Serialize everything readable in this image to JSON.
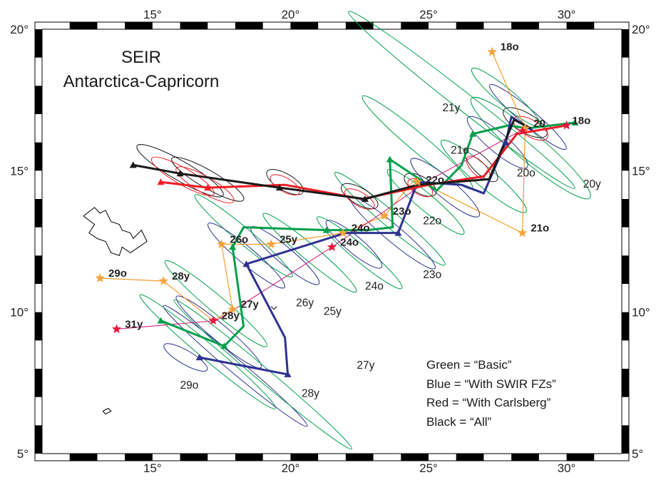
{
  "map": {
    "title_lines": [
      "SEIR",
      "Antarctica-Capricorn"
    ],
    "x_ticks": [
      {
        "value": 15,
        "label": "15°"
      },
      {
        "value": 20,
        "label": "20°"
      },
      {
        "value": 25,
        "label": "25°"
      },
      {
        "value": 30,
        "label": "30°"
      }
    ],
    "y_ticks": [
      {
        "value": 5,
        "label": "5°"
      },
      {
        "value": 10,
        "label": "10°"
      },
      {
        "value": 15,
        "label": "15°"
      },
      {
        "value": 20,
        "label": "20°"
      }
    ],
    "legend": [
      "Green = “Basic”",
      "Blue = “With SWIR FZs”",
      "Red = “With Carlsberg”",
      "Black = “All”"
    ],
    "colors": {
      "green": "#00a04a",
      "blue": "#2e3192",
      "red": "#ed1c24",
      "black": "#1a1a1a",
      "orange": "#f7941d",
      "magenta": "#d6247d",
      "star_red": "#e8173a",
      "star_orange": "#f7a23a"
    },
    "paths": {
      "green": [
        [
          30.3,
          16.7
        ],
        [
          28.6,
          16.5
        ],
        [
          27.9,
          16.6
        ],
        [
          26.6,
          16.3
        ],
        [
          26.2,
          15.2
        ],
        [
          25.3,
          14.3
        ],
        [
          23.6,
          15.4
        ],
        [
          23.7,
          13.0
        ],
        [
          22.8,
          12.9
        ],
        [
          21.3,
          12.9
        ],
        [
          18.3,
          13.0
        ],
        [
          17.9,
          12.3
        ],
        [
          18.3,
          9.5
        ],
        [
          17.6,
          8.8
        ],
        [
          15.3,
          9.7
        ]
      ],
      "blue": [
        [
          28.8,
          16.4
        ],
        [
          28.0,
          16.9
        ],
        [
          27.8,
          16.0
        ],
        [
          27.0,
          14.2
        ],
        [
          26.2,
          14.5
        ],
        [
          24.6,
          14.6
        ],
        [
          23.9,
          12.8
        ],
        [
          22.0,
          12.8
        ],
        [
          18.4,
          11.7
        ],
        [
          19.8,
          9.1
        ],
        [
          19.9,
          7.8
        ],
        [
          16.7,
          8.4
        ]
      ],
      "red": [
        [
          30.0,
          16.6
        ],
        [
          28.2,
          16.3
        ],
        [
          27.0,
          14.8
        ],
        [
          25.0,
          14.5
        ],
        [
          22.6,
          14.0
        ],
        [
          19.8,
          14.5
        ],
        [
          17.0,
          14.4
        ],
        [
          15.3,
          14.6
        ]
      ],
      "black": [
        [
          28.7,
          16.5
        ],
        [
          28.1,
          16.8
        ],
        [
          27.2,
          14.7
        ],
        [
          24.6,
          14.5
        ],
        [
          22.7,
          14.0
        ],
        [
          19.6,
          14.4
        ],
        [
          16.0,
          14.9
        ],
        [
          14.3,
          15.2
        ]
      ],
      "orange": [
        [
          27.3,
          19.2
        ],
        [
          28.5,
          16.5
        ],
        [
          28.4,
          12.8
        ],
        [
          24.5,
          14.7
        ],
        [
          23.4,
          13.4
        ],
        [
          21.9,
          12.8
        ],
        [
          19.3,
          12.4
        ],
        [
          17.5,
          12.4
        ],
        [
          17.9,
          10.1
        ],
        [
          17.2,
          9.7
        ],
        [
          15.4,
          11.1
        ],
        [
          13.1,
          11.2
        ]
      ],
      "magenta": [
        [
          28.5,
          16.5
        ],
        [
          24.9,
          14.6
        ],
        [
          23.3,
          13.5
        ],
        [
          21.5,
          12.3
        ],
        [
          18.3,
          10.3
        ],
        [
          17.3,
          9.7
        ],
        [
          13.7,
          9.4
        ]
      ]
    },
    "ellipses": [
      {
        "color": "green",
        "cx": 26.2,
        "cy": 17.5,
        "rx": 5.2,
        "ry": 0.32,
        "angle": 38
      },
      {
        "color": "green",
        "cx": 28.7,
        "cy": 15.8,
        "rx": 2.8,
        "ry": 0.5,
        "angle": 40
      },
      {
        "color": "blue",
        "cx": 28.6,
        "cy": 16.9,
        "rx": 1.8,
        "ry": 0.28,
        "angle": 40
      },
      {
        "color": "black",
        "cx": 28.5,
        "cy": 16.7,
        "rx": 0.9,
        "ry": 0.35,
        "angle": 30
      },
      {
        "color": "red",
        "cx": 28.7,
        "cy": 16.5,
        "rx": 0.7,
        "ry": 0.3,
        "angle": 30
      },
      {
        "color": "green",
        "cx": 27.8,
        "cy": 17.6,
        "rx": 1.6,
        "ry": 0.3,
        "angle": 40
      },
      {
        "color": "blue",
        "cx": 27.5,
        "cy": 16.0,
        "rx": 1.4,
        "ry": 0.35,
        "angle": 40
      },
      {
        "color": "green",
        "cx": 27.0,
        "cy": 14.8,
        "rx": 2.0,
        "ry": 0.35,
        "angle": 40
      },
      {
        "color": "black",
        "cx": 26.9,
        "cy": 15.2,
        "rx": 0.8,
        "ry": 0.3,
        "angle": 45
      },
      {
        "color": "red",
        "cx": 26.8,
        "cy": 15.1,
        "rx": 0.55,
        "ry": 0.25,
        "angle": 45
      },
      {
        "color": "green",
        "cx": 24.6,
        "cy": 16.0,
        "rx": 2.6,
        "ry": 0.32,
        "angle": 40
      },
      {
        "color": "blue",
        "cx": 25.6,
        "cy": 14.4,
        "rx": 1.6,
        "ry": 0.35,
        "angle": 40
      },
      {
        "color": "green",
        "cx": 24.9,
        "cy": 13.9,
        "rx": 1.8,
        "ry": 0.3,
        "angle": 40
      },
      {
        "color": "black",
        "cx": 24.7,
        "cy": 14.5,
        "rx": 0.65,
        "ry": 0.3,
        "angle": 30
      },
      {
        "color": "red",
        "cx": 24.7,
        "cy": 14.4,
        "rx": 0.5,
        "ry": 0.25,
        "angle": 30
      },
      {
        "color": "green",
        "cx": 23.6,
        "cy": 13.3,
        "rx": 2.6,
        "ry": 0.28,
        "angle": 40
      },
      {
        "color": "blue",
        "cx": 23.7,
        "cy": 12.8,
        "rx": 2.0,
        "ry": 0.3,
        "angle": 40
      },
      {
        "color": "black",
        "cx": 22.5,
        "cy": 14.1,
        "rx": 0.75,
        "ry": 0.3,
        "angle": 30
      },
      {
        "color": "red",
        "cx": 22.5,
        "cy": 14.0,
        "rx": 0.6,
        "ry": 0.25,
        "angle": 30
      },
      {
        "color": "green",
        "cx": 22.5,
        "cy": 12.1,
        "rx": 2.0,
        "ry": 0.28,
        "angle": 40
      },
      {
        "color": "blue",
        "cx": 22.3,
        "cy": 12.4,
        "rx": 1.3,
        "ry": 0.3,
        "angle": 40
      },
      {
        "color": "black",
        "cx": 19.8,
        "cy": 14.6,
        "rx": 0.75,
        "ry": 0.3,
        "angle": 30
      },
      {
        "color": "red",
        "cx": 19.8,
        "cy": 14.5,
        "rx": 0.6,
        "ry": 0.25,
        "angle": 30
      },
      {
        "color": "green",
        "cx": 20.7,
        "cy": 12.1,
        "rx": 2.2,
        "ry": 0.28,
        "angle": 40
      },
      {
        "color": "blue",
        "cx": 19.8,
        "cy": 12.0,
        "rx": 1.6,
        "ry": 0.3,
        "angle": 40
      },
      {
        "color": "black",
        "cx": 16.0,
        "cy": 15.0,
        "rx": 1.8,
        "ry": 0.35,
        "angle": 30
      },
      {
        "color": "red",
        "cx": 16.1,
        "cy": 14.8,
        "rx": 1.3,
        "ry": 0.3,
        "angle": 30
      },
      {
        "color": "black",
        "cx": 17.0,
        "cy": 14.7,
        "rx": 1.5,
        "ry": 0.32,
        "angle": 30
      },
      {
        "color": "red",
        "cx": 16.9,
        "cy": 14.5,
        "rx": 1.2,
        "ry": 0.3,
        "angle": 30
      },
      {
        "color": "green",
        "cx": 18.3,
        "cy": 12.7,
        "rx": 2.3,
        "ry": 0.28,
        "angle": 40
      },
      {
        "color": "blue",
        "cx": 18.4,
        "cy": 12.0,
        "rx": 1.8,
        "ry": 0.3,
        "angle": 40
      },
      {
        "color": "green",
        "cx": 17.3,
        "cy": 10.3,
        "rx": 2.4,
        "ry": 0.3,
        "angle": 40
      },
      {
        "color": "blue",
        "cx": 17.4,
        "cy": 9.3,
        "rx": 2.0,
        "ry": 0.3,
        "angle": 40
      },
      {
        "color": "green",
        "cx": 17.0,
        "cy": 8.6,
        "rx": 3.2,
        "ry": 0.28,
        "angle": 40
      },
      {
        "color": "blue",
        "cx": 18.0,
        "cy": 8.1,
        "rx": 3.4,
        "ry": 0.25,
        "angle": 40
      },
      {
        "color": "green",
        "cx": 19.0,
        "cy": 7.8,
        "rx": 4.2,
        "ry": 0.25,
        "angle": 40
      },
      {
        "color": "blue",
        "cx": 16.2,
        "cy": 8.4,
        "rx": 0.9,
        "ry": 0.25,
        "angle": 30
      }
    ],
    "triangles": [
      {
        "color": "green",
        "at": [
          30.3,
          16.7
        ]
      },
      {
        "color": "green",
        "at": [
          26.6,
          16.3
        ]
      },
      {
        "color": "green",
        "at": [
          23.6,
          15.4
        ]
      },
      {
        "color": "green",
        "at": [
          21.3,
          12.9
        ]
      },
      {
        "color": "green",
        "at": [
          17.9,
          12.3
        ]
      },
      {
        "color": "green",
        "at": [
          15.3,
          9.7
        ]
      },
      {
        "color": "green",
        "at": [
          17.6,
          8.8
        ]
      },
      {
        "color": "blue",
        "at": [
          27.8,
          16.0
        ]
      },
      {
        "color": "blue",
        "at": [
          23.9,
          12.8
        ]
      },
      {
        "color": "blue",
        "at": [
          18.4,
          11.7
        ]
      },
      {
        "color": "blue",
        "at": [
          19.9,
          7.8
        ]
      },
      {
        "color": "blue",
        "at": [
          16.7,
          8.4
        ]
      },
      {
        "color": "red",
        "at": [
          15.3,
          14.6
        ]
      },
      {
        "color": "red",
        "at": [
          17.0,
          14.4
        ]
      },
      {
        "color": "black",
        "at": [
          14.3,
          15.2
        ]
      },
      {
        "color": "black",
        "at": [
          16.0,
          14.9
        ]
      },
      {
        "color": "black",
        "at": [
          22.7,
          14.0
        ]
      },
      {
        "color": "black",
        "at": [
          19.6,
          14.4
        ]
      }
    ],
    "stars": [
      {
        "color": "star_orange",
        "at": [
          27.3,
          19.2
        ]
      },
      {
        "color": "star_red",
        "at": [
          30.0,
          16.6
        ]
      },
      {
        "color": "star_orange",
        "at": [
          28.5,
          16.5
        ]
      },
      {
        "color": "star_red",
        "at": [
          28.4,
          16.4
        ]
      },
      {
        "color": "star_orange",
        "at": [
          24.6,
          14.6
        ]
      },
      {
        "color": "star_orange",
        "at": [
          23.4,
          13.4
        ]
      },
      {
        "color": "star_orange",
        "at": [
          21.9,
          12.8
        ]
      },
      {
        "color": "star_red",
        "at": [
          21.5,
          12.3
        ]
      },
      {
        "color": "star_orange",
        "at": [
          19.3,
          12.4
        ]
      },
      {
        "color": "star_orange",
        "at": [
          17.5,
          12.4
        ]
      },
      {
        "color": "star_orange",
        "at": [
          28.4,
          12.8
        ]
      },
      {
        "color": "star_orange",
        "at": [
          17.9,
          10.1
        ]
      },
      {
        "color": "star_red",
        "at": [
          17.2,
          9.7
        ]
      },
      {
        "color": "star_orange",
        "at": [
          15.4,
          11.1
        ]
      },
      {
        "color": "star_orange",
        "at": [
          13.1,
          11.2
        ]
      },
      {
        "color": "star_red",
        "at": [
          13.7,
          9.4
        ]
      }
    ],
    "bold_labels": [
      {
        "text": "18o",
        "at": [
          27.5,
          19.2
        ]
      },
      {
        "text": "18o",
        "at": [
          30.1,
          16.6
        ]
      },
      {
        "text": "20",
        "at": [
          28.7,
          16.5
        ]
      },
      {
        "text": "22o",
        "at": [
          24.8,
          14.5
        ]
      },
      {
        "text": "23o",
        "at": [
          23.6,
          13.4
        ]
      },
      {
        "text": "24o",
        "at": [
          22.1,
          12.8
        ]
      },
      {
        "text": "24o",
        "at": [
          21.7,
          12.3
        ]
      },
      {
        "text": "25y",
        "at": [
          19.5,
          12.4
        ]
      },
      {
        "text": "26o",
        "at": [
          17.7,
          12.4
        ]
      },
      {
        "text": "21o",
        "at": [
          28.6,
          12.8
        ]
      },
      {
        "text": "27y",
        "at": [
          18.1,
          10.1
        ]
      },
      {
        "text": "28y",
        "at": [
          17.4,
          9.7
        ]
      },
      {
        "text": "28y",
        "at": [
          15.6,
          11.1
        ]
      },
      {
        "text": "29o",
        "at": [
          13.3,
          11.2
        ]
      },
      {
        "text": "31y",
        "at": [
          13.9,
          9.4
        ]
      }
    ],
    "plain_labels": [
      {
        "text": "21y",
        "at": [
          25.5,
          17.1
        ]
      },
      {
        "text": "21o",
        "at": [
          25.8,
          15.6
        ]
      },
      {
        "text": "20o",
        "at": [
          28.2,
          14.8
        ]
      },
      {
        "text": "20y",
        "at": [
          30.6,
          14.4
        ]
      },
      {
        "text": "22o",
        "at": [
          24.8,
          13.1
        ]
      },
      {
        "text": "23o",
        "at": [
          24.8,
          11.2
        ]
      },
      {
        "text": "24o",
        "at": [
          22.7,
          10.8
        ]
      },
      {
        "text": "25y",
        "at": [
          21.2,
          9.9
        ]
      },
      {
        "text": "26y",
        "at": [
          20.2,
          10.2
        ]
      },
      {
        "text": "27y",
        "at": [
          22.4,
          8.0
        ]
      },
      {
        "text": "28y",
        "at": [
          20.4,
          7.0
        ]
      },
      {
        "text": "29o",
        "at": [
          16.0,
          7.3
        ]
      }
    ],
    "coastlines": [
      [
        [
          12.5,
          13.4
        ],
        [
          12.9,
          13.7
        ],
        [
          13.1,
          13.5
        ],
        [
          13.3,
          13.6
        ],
        [
          13.5,
          13.2
        ],
        [
          13.8,
          13.1
        ],
        [
          13.9,
          12.9
        ],
        [
          14.2,
          12.8
        ],
        [
          14.3,
          12.6
        ],
        [
          14.6,
          12.9
        ],
        [
          14.8,
          12.5
        ],
        [
          14.5,
          12.3
        ],
        [
          14.2,
          12.1
        ],
        [
          13.9,
          12.3
        ],
        [
          13.8,
          12.0
        ],
        [
          13.5,
          12.1
        ],
        [
          13.3,
          12.5
        ],
        [
          13.0,
          12.6
        ],
        [
          12.7,
          12.8
        ],
        [
          12.9,
          13.1
        ],
        [
          12.5,
          13.4
        ]
      ],
      [
        [
          13.2,
          6.5
        ],
        [
          13.4,
          6.6
        ],
        [
          13.5,
          6.5
        ],
        [
          13.3,
          6.4
        ],
        [
          13.2,
          6.5
        ]
      ],
      [
        [
          19.3,
          10.2
        ],
        [
          19.4,
          10.1
        ],
        [
          19.5,
          10.2
        ]
      ]
    ]
  }
}
